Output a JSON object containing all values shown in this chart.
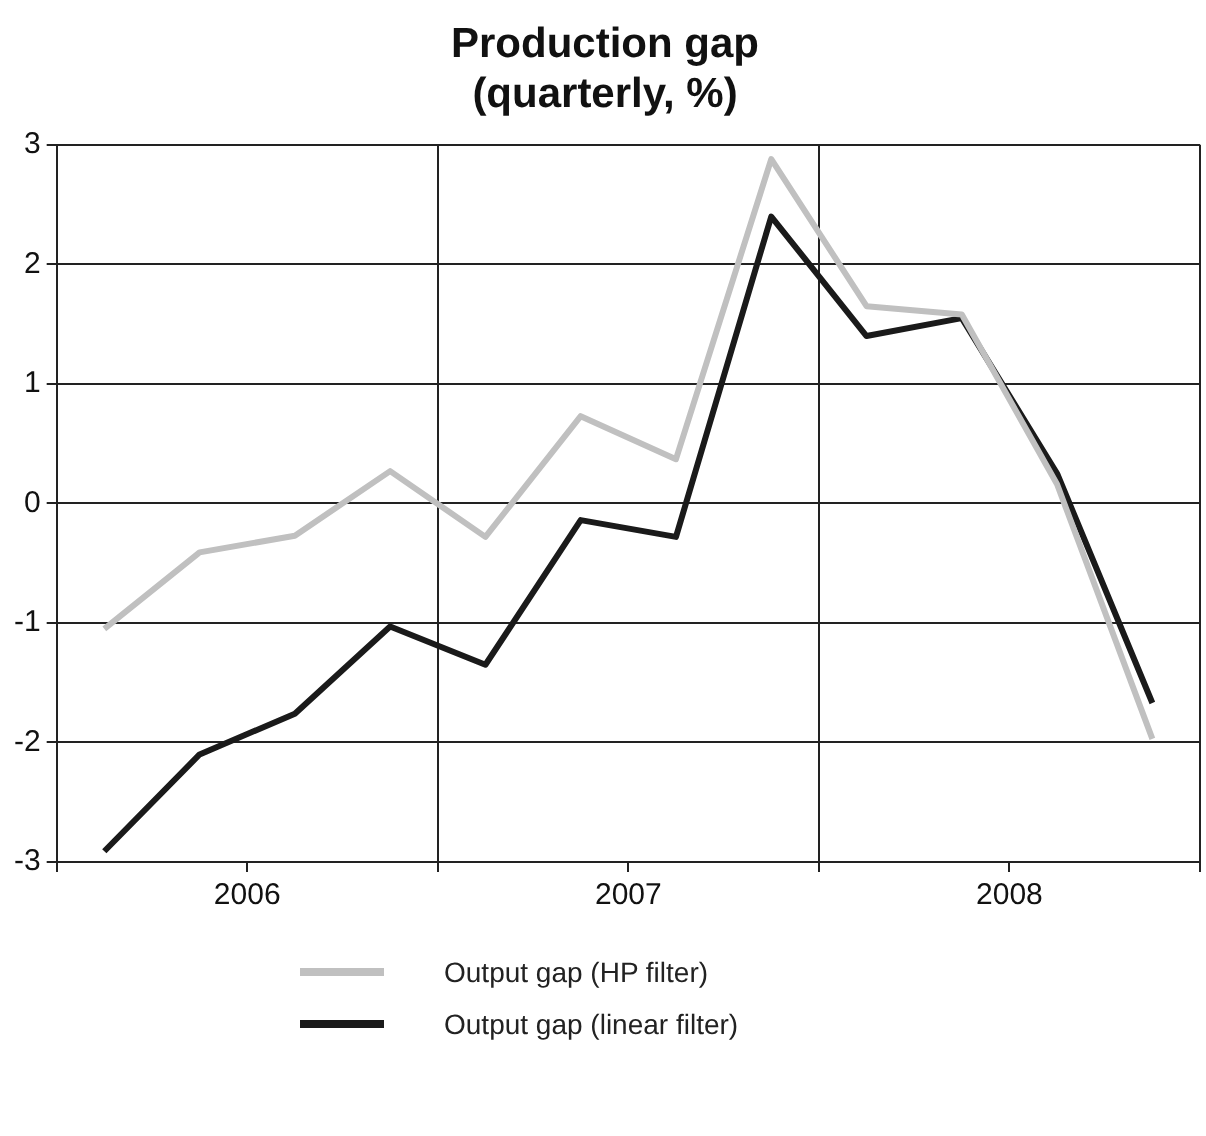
{
  "chart_data": {
    "type": "line",
    "title": "Production gap\n(quarterly, %)",
    "x": [
      2006.125,
      2006.375,
      2006.625,
      2006.875,
      2007.125,
      2007.375,
      2007.625,
      2007.875,
      2008.125,
      2008.375,
      2008.625,
      2008.875
    ],
    "series": [
      {
        "name": "Output gap (HP filter)",
        "color": "#c0c0c0",
        "values": [
          -1.05,
          -0.41,
          -0.27,
          0.27,
          -0.28,
          0.73,
          0.37,
          2.88,
          1.65,
          1.58,
          0.16,
          -1.97
        ]
      },
      {
        "name": "Output gap (linear filter)",
        "color": "#1a1a1a",
        "values": [
          -2.91,
          -2.1,
          -1.76,
          -1.03,
          -1.35,
          -0.14,
          -0.28,
          2.4,
          1.4,
          1.55,
          0.25,
          -1.67
        ]
      }
    ],
    "xlim": [
      2006,
      2009
    ],
    "xticks": [
      {
        "value": 2006,
        "label": null
      },
      {
        "value": 2006.5,
        "label": "2006"
      },
      {
        "value": 2007,
        "label": null
      },
      {
        "value": 2007.5,
        "label": "2007"
      },
      {
        "value": 2008,
        "label": null
      },
      {
        "value": 2008.5,
        "label": "2008"
      },
      {
        "value": 2009,
        "label": null
      }
    ],
    "ylim": [
      -3,
      3
    ],
    "yticks": [
      -3,
      -2,
      -1,
      0,
      1,
      2,
      3
    ],
    "grid": true,
    "legend": "bottom",
    "marker": "none",
    "line_style": "solid"
  }
}
